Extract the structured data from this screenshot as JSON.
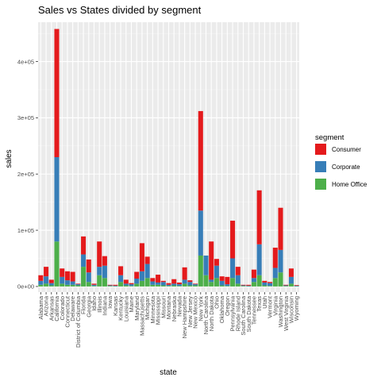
{
  "chart_data": {
    "type": "bar",
    "stacked": true,
    "title": "Sales vs States divided by segment",
    "xlabel": "state",
    "ylabel": "sales",
    "ylim": [
      -10000,
      470000
    ],
    "y_ticks": [
      0,
      100000,
      200000,
      300000,
      400000
    ],
    "y_tick_labels": [
      "0e+00",
      "1e+05",
      "2e+05",
      "3e+05",
      "4e+05"
    ],
    "grid": true,
    "legend": {
      "title": "segment",
      "position": "right"
    },
    "categories": [
      "Alabama",
      "Arizona",
      "Arkansas",
      "California",
      "Colorado",
      "Connecticut",
      "Delaware",
      "District of Columbia",
      "Florida",
      "Georgia",
      "Idaho",
      "Illinois",
      "Indiana",
      "Iowa",
      "Kansas",
      "Kentucky",
      "Louisiana",
      "Maine",
      "Maryland",
      "Massachusetts",
      "Michigan",
      "Minnesota",
      "Mississippi",
      "Missouri",
      "Montana",
      "Nebraska",
      "Nevada",
      "New Hampshire",
      "New Jersey",
      "New Mexico",
      "New York",
      "North Carolina",
      "North Dakota",
      "Ohio",
      "Oklahoma",
      "Oregon",
      "Pennsylvania",
      "Rhode Island",
      "South Carolina",
      "South Dakota",
      "Tennessee",
      "Texas",
      "Utah",
      "Vermont",
      "Virginia",
      "Washington",
      "West Virginia",
      "Wisconsin",
      "Wyoming"
    ],
    "series": [
      {
        "name": "Home Office",
        "color": "#4daf4a",
        "values": [
          3000,
          5000,
          2000,
          80000,
          5000,
          3000,
          3000,
          2000,
          35000,
          8000,
          1000,
          20000,
          15000,
          1000,
          500,
          8000,
          2000,
          1000,
          5000,
          10000,
          15000,
          3000,
          3000,
          2000,
          1000,
          2000,
          1000,
          5000,
          2000,
          2000,
          55000,
          20000,
          8000,
          15000,
          2000,
          1000,
          15000,
          5000,
          1000,
          500,
          8000,
          20000,
          2000,
          1000,
          15000,
          25000,
          1000,
          5000,
          500
        ]
      },
      {
        "name": "Corporate",
        "color": "#377eb8",
        "values": [
          7000,
          13000,
          4000,
          150000,
          12000,
          8000,
          6000,
          2000,
          22000,
          17000,
          2000,
          15000,
          22000,
          1000,
          1000,
          12000,
          3000,
          3000,
          9000,
          17000,
          25000,
          6000,
          4000,
          6000,
          2000,
          3000,
          3000,
          7000,
          6000,
          2000,
          80000,
          35000,
          4000,
          22000,
          8000,
          3000,
          35000,
          15000,
          1000,
          1000,
          7000,
          55000,
          5000,
          5000,
          18000,
          40000,
          1000,
          12000,
          1000
        ]
      },
      {
        "name": "Consumer",
        "color": "#e41a1c",
        "values": [
          10000,
          17000,
          6000,
          228000,
          15000,
          16000,
          17000,
          1000,
          32000,
          23000,
          2000,
          45000,
          17000,
          1000,
          1500,
          16000,
          7000,
          2000,
          12000,
          50000,
          13000,
          6000,
          14000,
          2000,
          3000,
          8000,
          3000,
          22000,
          3000,
          1000,
          177000,
          0,
          68000,
          12000,
          8000,
          13000,
          67000,
          15000,
          1000,
          1500,
          15000,
          96000,
          3000,
          2000,
          36000,
          75000,
          1000,
          15000,
          1000
        ]
      }
    ]
  }
}
